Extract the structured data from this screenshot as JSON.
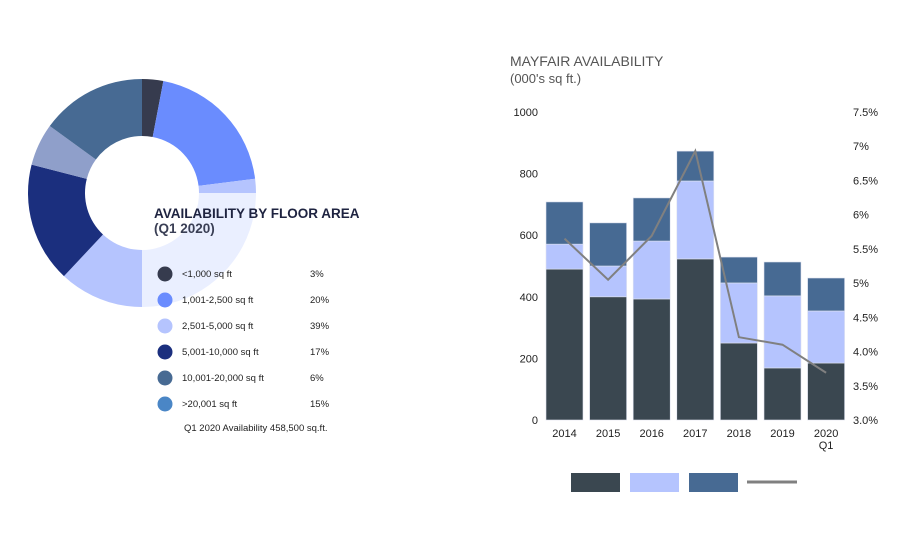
{
  "chart_data": [
    {
      "type": "pie",
      "title": "AVAILABILITY BY FLOOR AREA",
      "subtitle": "(Q1 2020)",
      "donut": true,
      "categories": [
        "<1,000 sq ft",
        "1,001-2,500 sq ft",
        "2,501-5,000 sq ft",
        "5,001-10,000 sq ft",
        "10,001-20,000 sq ft",
        ">20,001 sq ft"
      ],
      "values": [
        3,
        20,
        39,
        17,
        6,
        15
      ],
      "labels": [
        "3%",
        "20%",
        "39%",
        "17%",
        "6%",
        "15%"
      ],
      "slice_colors": [
        "#363b4e",
        "#6a8cfe",
        "#b5c4fe",
        "#1b2f7e",
        "#8f9fca",
        "#476a93"
      ],
      "legend_colors": [
        "#363b4e",
        "#6a8cfe",
        "#b5c4fe",
        "#1b2f7e",
        "#476a93",
        "#4a86c6"
      ],
      "note": "Q1 2020 Availability 458,500 sq.ft."
    },
    {
      "type": "bar",
      "stacked": true,
      "title": "MAYFAIR AVAILABILITY",
      "subtitle": "(000's sq ft.)",
      "categories": [
        "2014",
        "2015",
        "2016",
        "2017",
        "2018",
        "2019",
        "2020\nQ1"
      ],
      "series": [
        {
          "values": [
            490,
            400,
            393,
            523,
            250,
            169,
            185
          ],
          "color": "#3a4750"
        },
        {
          "values": [
            81,
            100,
            188,
            253,
            195,
            234,
            169
          ],
          "color": "#b5c4fe"
        },
        {
          "values": [
            137,
            140,
            140,
            97,
            84,
            110,
            107
          ],
          "color": "#476a93"
        }
      ],
      "line": {
        "values": [
          5.65,
          5.05,
          5.69,
          6.93,
          4.21,
          4.1,
          3.69
        ],
        "color": "#808080",
        "axis": "right"
      },
      "ylim": [
        0,
        1000
      ],
      "yticks": [
        "0",
        "200",
        "400",
        "600",
        "800",
        "1000"
      ],
      "y2lim": [
        3.0,
        7.5
      ],
      "y2ticks": [
        "3.0%",
        "3.5%",
        "4.0%",
        "4.5%",
        "5%",
        "5.5%",
        "6%",
        "6.5%",
        "7%",
        "7.5%"
      ],
      "grid": false,
      "legend": "bottom"
    }
  ]
}
